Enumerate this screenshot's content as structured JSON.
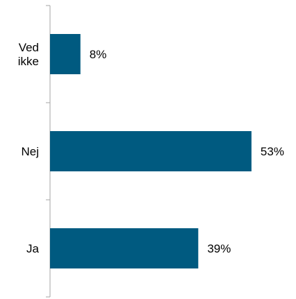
{
  "chart_data": {
    "type": "bar",
    "orientation": "horizontal",
    "categories": [
      "Ved ikke",
      "Nej",
      "Ja"
    ],
    "category_lines": [
      [
        "Ved",
        "ikke"
      ],
      [
        "Nej"
      ],
      [
        "Ja"
      ]
    ],
    "values": [
      8,
      53,
      39
    ],
    "value_labels": [
      "8%",
      "53%",
      "39%"
    ],
    "value_unit": "%",
    "title": "",
    "xlabel": "",
    "ylabel": "",
    "grid": false,
    "legend": "none"
  },
  "colors": {
    "bar": "#005a80",
    "axis": "#a6a6a6",
    "text": "#000000"
  }
}
